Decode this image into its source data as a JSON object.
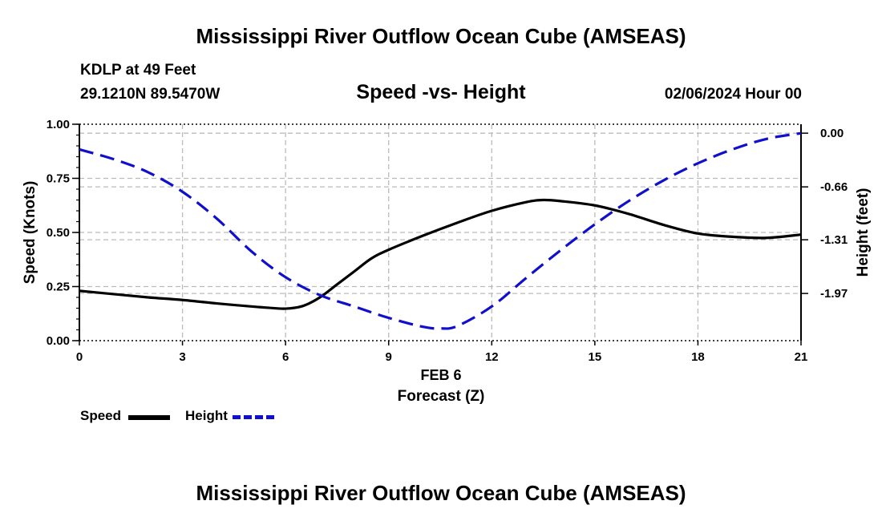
{
  "header": {
    "main_title": "Mississippi River Outflow Ocean Cube (AMSEAS)",
    "station": "KDLP at 49 Feet",
    "coords": "29.1210N  89.5470W",
    "subtitle": "Speed -vs- Height",
    "datetime": "02/06/2024 Hour 00"
  },
  "footer": {
    "main_title": "Mississippi River Outflow Ocean Cube (AMSEAS)"
  },
  "legend": {
    "speed_label": "Speed",
    "height_label": "Height"
  },
  "chart_data": {
    "type": "line",
    "xlabel": "Forecast (Z)",
    "xdate_label": "FEB 6",
    "ylabel_left": "Speed (Knots)",
    "ylabel_right": "Height (feet)",
    "xlim": [
      0,
      21
    ],
    "ylim_left": [
      0,
      1
    ],
    "ylim_right": [
      -2.55,
      0.11
    ],
    "x_ticks": [
      0,
      3,
      6,
      9,
      12,
      15,
      18,
      21
    ],
    "x_tick_labels": [
      "0",
      "3",
      "6",
      "9",
      "12",
      "15",
      "18",
      "21"
    ],
    "y_left_ticks": [
      0,
      0.25,
      0.5,
      0.75,
      1.0
    ],
    "y_left_tick_labels": [
      "0.00",
      "0.25",
      "0.50",
      "0.75",
      "1.00"
    ],
    "y_right_ticks": [
      0.0,
      -0.66,
      -1.31,
      -1.97
    ],
    "y_right_tick_labels": [
      "0.00",
      "-0.66",
      "-1.31",
      "-1.97"
    ],
    "grid": true,
    "colors": {
      "speed": "#000000",
      "height": "#1010cc",
      "grid": "#bbbbbb"
    },
    "series": [
      {
        "name": "Speed",
        "axis": "left",
        "style": "solid",
        "x": [
          0,
          1,
          2,
          3,
          4,
          5,
          5.5,
          6,
          6.5,
          7,
          7.5,
          8,
          8.5,
          9,
          10,
          11,
          12,
          13,
          13.5,
          14,
          15,
          16,
          17,
          18,
          19,
          20,
          21
        ],
        "values": [
          0.23,
          0.215,
          0.2,
          0.188,
          0.172,
          0.158,
          0.152,
          0.148,
          0.16,
          0.2,
          0.26,
          0.32,
          0.38,
          0.42,
          0.485,
          0.545,
          0.6,
          0.64,
          0.65,
          0.645,
          0.625,
          0.585,
          0.535,
          0.495,
          0.48,
          0.475,
          0.49
        ]
      },
      {
        "name": "Height",
        "axis": "right",
        "style": "dashed",
        "x": [
          0,
          1,
          2,
          3,
          4,
          5,
          6,
          7,
          8,
          9,
          10,
          10.5,
          11,
          12,
          13,
          14,
          15,
          16,
          17,
          18,
          19,
          20,
          21
        ],
        "values": [
          -0.2,
          -0.32,
          -0.48,
          -0.72,
          -1.05,
          -1.45,
          -1.77,
          -1.99,
          -2.13,
          -2.27,
          -2.38,
          -2.4,
          -2.37,
          -2.13,
          -1.78,
          -1.44,
          -1.12,
          -0.83,
          -0.58,
          -0.37,
          -0.2,
          -0.07,
          0.0
        ]
      }
    ]
  }
}
